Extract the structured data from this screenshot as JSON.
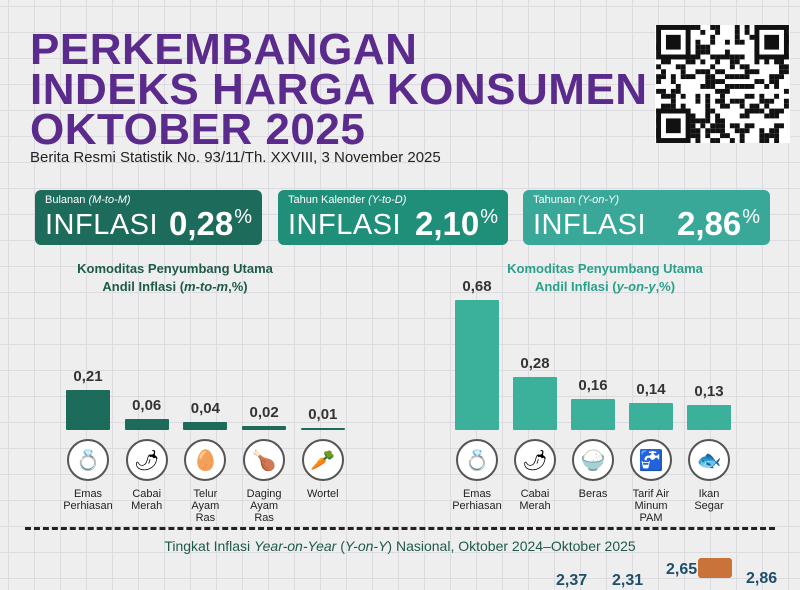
{
  "header": {
    "title_lines": [
      "PERKEMBANGAN",
      "INDEKS HARGA KONSUMEN",
      "OKTOBER 2025"
    ],
    "subtitle": "Berita Resmi Statistik No. 93/11/Th. XXVIII, 3 November 2025"
  },
  "cards": [
    {
      "period": "Bulanan",
      "period_en": "(M-to-M)",
      "label": "INFLASI",
      "value": "0,28",
      "unit": "%",
      "color": "#1d6b5a"
    },
    {
      "period": "Tahun Kalender",
      "period_en": "(Y-to-D)",
      "label": "INFLASI",
      "value": "2,10",
      "unit": "%",
      "color": "#1f8f7a"
    },
    {
      "period": "Tahunan",
      "period_en": "(Y-on-Y)",
      "label": "INFLASI",
      "value": "2,86",
      "unit": "%",
      "color": "#3aa898"
    }
  ],
  "chart_data": [
    {
      "type": "bar",
      "title_line1": "Komoditas Penyumbang Utama",
      "title_line2_pre": "Andil Inflasi (",
      "title_line2_em": "m-to-m",
      "title_line2_post": ",%)",
      "color": "#1d6b5a",
      "categories": [
        "Emas Perhiasan",
        "Cabai Merah",
        "Telur Ayam Ras",
        "Daging Ayam Ras",
        "Wortel"
      ],
      "category_lines": [
        [
          "Emas",
          "Perhiasan"
        ],
        [
          "Cabai",
          "Merah"
        ],
        [
          "Telur",
          "Ayam",
          "Ras"
        ],
        [
          "Daging",
          "Ayam",
          "Ras"
        ],
        [
          "Wortel"
        ]
      ],
      "icons": [
        "gold-jewelry",
        "chili",
        "eggs",
        "chicken",
        "carrot"
      ],
      "values": [
        0.21,
        0.06,
        0.04,
        0.02,
        0.01
      ],
      "labels": [
        "0,21",
        "0,06",
        "0,04",
        "0,02",
        "0,01"
      ]
    },
    {
      "type": "bar",
      "title_line1": "Komoditas Penyumbang Utama",
      "title_line2_pre": "Andil Inflasi (",
      "title_line2_em": "y-on-y",
      "title_line2_post": ",%)",
      "color": "#3bb09a",
      "categories": [
        "Emas Perhiasan",
        "Cabai Merah",
        "Beras",
        "Tarif Air Minum PAM",
        "Ikan Segar"
      ],
      "category_lines": [
        [
          "Emas",
          "Perhiasan"
        ],
        [
          "Cabai",
          "Merah"
        ],
        [
          "Beras"
        ],
        [
          "Tarif Air",
          "Minum",
          "PAM"
        ],
        [
          "Ikan",
          "Segar"
        ]
      ],
      "icons": [
        "gold-jewelry",
        "chili",
        "rice",
        "water-tap",
        "fish"
      ],
      "values": [
        0.68,
        0.28,
        0.16,
        0.14,
        0.13
      ],
      "labels": [
        "0,68",
        "0,28",
        "0,16",
        "0,14",
        "0,13"
      ]
    }
  ],
  "bottom": {
    "title_pre": "Tingkat Inflasi ",
    "title_em1": "Year-on-Year",
    "title_mid": " (",
    "title_em2": "Y-on-Y",
    "title_post": ") Nasional, Oktober 2024–Oktober 2025",
    "values": [
      "2,37",
      "2,31",
      "2,65",
      "2,86"
    ]
  }
}
